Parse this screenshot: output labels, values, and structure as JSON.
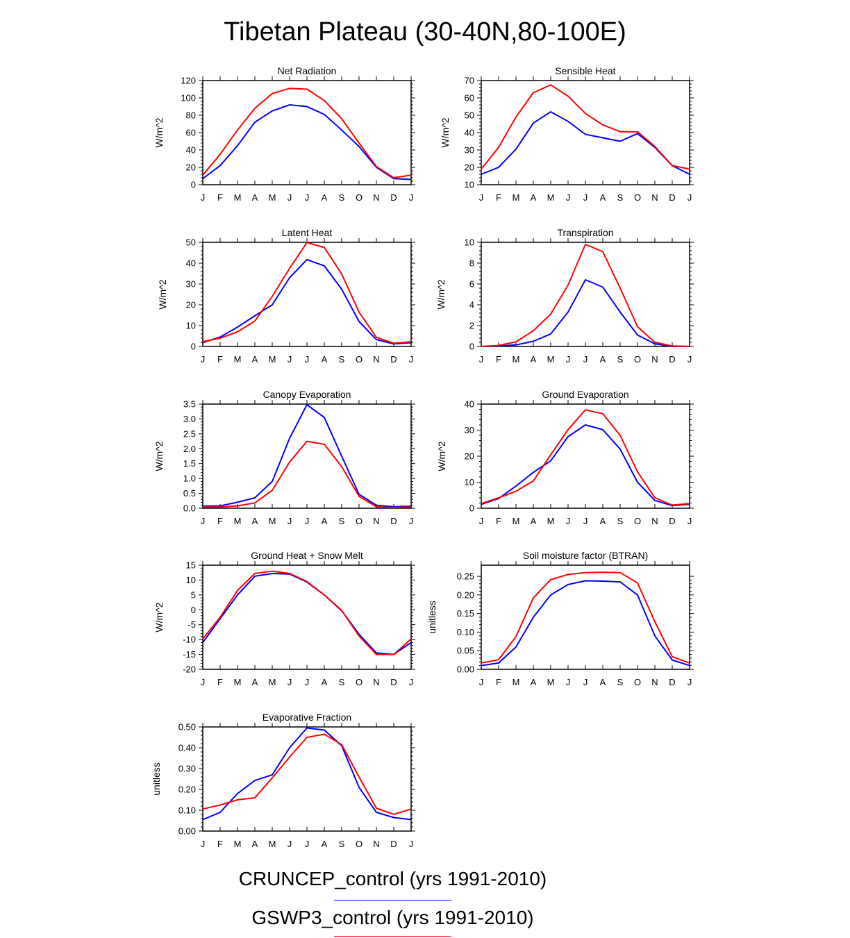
{
  "title": "Tibetan Plateau (30-40N,80-100E)",
  "months": [
    "J",
    "F",
    "M",
    "A",
    "M",
    "J",
    "J",
    "A",
    "S",
    "O",
    "N",
    "D",
    "J"
  ],
  "legend": [
    {
      "label": "CRUNCEP_control (yrs 1991-2010)",
      "color": "#0000ff"
    },
    {
      "label": "GSWP3_control (yrs 1991-2010)",
      "color": "#ff0000"
    }
  ],
  "chart_data": [
    {
      "type": "line",
      "title": "Net Radiation",
      "ylabel": "W/m^2",
      "ylim": [
        0,
        120
      ],
      "yticks": [
        0,
        20,
        40,
        60,
        80,
        100,
        120
      ],
      "yticklabels": [
        "0",
        "20",
        "40",
        "60",
        "80",
        "100",
        "120"
      ],
      "series": [
        {
          "name": "CRUNCEP_control (yrs 1991-2010)",
          "color": "#0000ff",
          "values": [
            7,
            22,
            45,
            72,
            85,
            92,
            90,
            81,
            63,
            44,
            20,
            7,
            6
          ]
        },
        {
          "name": "GSWP3_control (yrs 1991-2010)",
          "color": "#ff0000",
          "values": [
            11,
            35,
            63,
            88,
            105,
            111,
            110,
            97,
            76,
            48,
            21,
            8,
            11
          ]
        }
      ]
    },
    {
      "type": "line",
      "title": "Sensible Heat",
      "ylabel": "W/m^2",
      "ylim": [
        10,
        70
      ],
      "yticks": [
        10,
        20,
        30,
        40,
        50,
        60,
        70
      ],
      "yticklabels": [
        "10",
        "20",
        "30",
        "40",
        "50",
        "60",
        "70"
      ],
      "series": [
        {
          "name": "CRUNCEP_control (yrs 1991-2010)",
          "color": "#0000ff",
          "values": [
            16,
            20,
            30.5,
            45.5,
            52,
            46.5,
            39,
            37,
            35,
            39.5,
            31.5,
            21,
            16
          ]
        },
        {
          "name": "GSWP3_control (yrs 1991-2010)",
          "color": "#ff0000",
          "values": [
            19,
            31.5,
            49,
            63,
            67.5,
            61,
            51,
            44.5,
            40.5,
            40.5,
            32,
            21,
            19
          ]
        }
      ]
    },
    {
      "type": "line",
      "title": "Latent Heat",
      "ylabel": "W/m^2",
      "ylim": [
        0,
        50
      ],
      "yticks": [
        0,
        10,
        20,
        30,
        40,
        50
      ],
      "yticklabels": [
        "0",
        "10",
        "20",
        "30",
        "40",
        "50"
      ],
      "series": [
        {
          "name": "CRUNCEP_control (yrs 1991-2010)",
          "color": "#0000ff",
          "values": [
            1.8,
            4.5,
            9.3,
            14.7,
            20,
            33,
            41.7,
            38.7,
            27.5,
            12,
            3.3,
            1.2,
            1.8
          ]
        },
        {
          "name": "GSWP3_control (yrs 1991-2010)",
          "color": "#ff0000",
          "values": [
            2.3,
            4,
            7,
            12.2,
            24,
            37.5,
            49.9,
            47.5,
            34.8,
            16.5,
            4.4,
            1.5,
            2.3
          ]
        }
      ]
    },
    {
      "type": "line",
      "title": "Transpiration",
      "ylabel": "W/m^2",
      "ylim": [
        0,
        10
      ],
      "yticks": [
        0,
        2,
        4,
        6,
        8,
        10
      ],
      "yticklabels": [
        "0",
        "2",
        "4",
        "6",
        "8",
        "10"
      ],
      "series": [
        {
          "name": "CRUNCEP_control (yrs 1991-2010)",
          "color": "#0000ff",
          "values": [
            0,
            0.05,
            0.15,
            0.5,
            1.2,
            3.3,
            6.4,
            5.7,
            3.3,
            1.1,
            0.25,
            0.02,
            0
          ]
        },
        {
          "name": "GSWP3_control (yrs 1991-2010)",
          "color": "#ff0000",
          "values": [
            0,
            0.1,
            0.45,
            1.5,
            3.1,
            5.9,
            9.8,
            9.1,
            5.6,
            1.9,
            0.4,
            0.05,
            0
          ]
        }
      ]
    },
    {
      "type": "line",
      "title": "Canopy Evaporation",
      "ylabel": "W/m^2",
      "ylim": [
        0,
        3.5
      ],
      "yticks": [
        0,
        0.5,
        1,
        1.5,
        2,
        2.5,
        3,
        3.5
      ],
      "yticklabels": [
        "0.0",
        "0.5",
        "1.0",
        "1.5",
        "2.0",
        "2.5",
        "3.0",
        "3.5"
      ],
      "series": [
        {
          "name": "CRUNCEP_control (yrs 1991-2010)",
          "color": "#0000ff",
          "values": [
            0.07,
            0.08,
            0.2,
            0.35,
            0.9,
            2.35,
            3.48,
            3.05,
            1.75,
            0.47,
            0.1,
            0.05,
            0.07
          ]
        },
        {
          "name": "GSWP3_control (yrs 1991-2010)",
          "color": "#ff0000",
          "values": [
            0.04,
            0.04,
            0.08,
            0.18,
            0.6,
            1.55,
            2.25,
            2.15,
            1.4,
            0.4,
            0.05,
            0.02,
            0.04
          ]
        }
      ]
    },
    {
      "type": "line",
      "title": "Ground Evaporation",
      "ylabel": "W/m^2",
      "ylim": [
        0,
        40
      ],
      "yticks": [
        0,
        10,
        20,
        30,
        40
      ],
      "yticklabels": [
        "0",
        "10",
        "20",
        "30",
        "40"
      ],
      "series": [
        {
          "name": "CRUNCEP_control (yrs 1991-2010)",
          "color": "#0000ff",
          "values": [
            1.5,
            3.7,
            8.5,
            13.8,
            18.2,
            27.5,
            32,
            30.2,
            22.7,
            10,
            3,
            1,
            1.5
          ]
        },
        {
          "name": "GSWP3_control (yrs 1991-2010)",
          "color": "#ff0000",
          "values": [
            1.8,
            4,
            6.5,
            10.5,
            20.5,
            30.2,
            37.8,
            36.3,
            28,
            14,
            4,
            1.2,
            1.8
          ]
        }
      ]
    },
    {
      "type": "line",
      "title": "Ground Heat + Snow Melt",
      "ylabel": "W/m^2",
      "ylim": [
        -20,
        15
      ],
      "yticks": [
        -20,
        -15,
        -10,
        -5,
        0,
        5,
        10,
        15
      ],
      "yticklabels": [
        "-20",
        "-15",
        "-10",
        "-5",
        "0",
        "5",
        "10",
        "15"
      ],
      "series": [
        {
          "name": "CRUNCEP_control (yrs 1991-2010)",
          "color": "#0000ff",
          "values": [
            -11,
            -3,
            5,
            11.3,
            12.2,
            12,
            9.3,
            5,
            -0.3,
            -8.2,
            -14.5,
            -15,
            -11
          ]
        },
        {
          "name": "GSWP3_control (yrs 1991-2010)",
          "color": "#ff0000",
          "values": [
            -9.8,
            -2.5,
            6.5,
            12.2,
            13,
            12.2,
            9.5,
            5,
            -0.2,
            -8.8,
            -15,
            -15,
            -9.8
          ]
        }
      ]
    },
    {
      "type": "line",
      "title": "Soil moisture factor (BTRAN)",
      "ylabel": "unitless",
      "ylim": [
        0,
        0.28
      ],
      "yticks": [
        0,
        0.05,
        0.1,
        0.15,
        0.2,
        0.25
      ],
      "yticklabels": [
        "0.00",
        "0.05",
        "0.10",
        "0.15",
        "0.20",
        "0.25"
      ],
      "series": [
        {
          "name": "CRUNCEP_control (yrs 1991-2010)",
          "color": "#0000ff",
          "values": [
            0.01,
            0.017,
            0.06,
            0.14,
            0.2,
            0.228,
            0.238,
            0.237,
            0.235,
            0.2,
            0.09,
            0.025,
            0.01
          ]
        },
        {
          "name": "GSWP3_control (yrs 1991-2010)",
          "color": "#ff0000",
          "values": [
            0.017,
            0.026,
            0.088,
            0.192,
            0.241,
            0.255,
            0.26,
            0.261,
            0.26,
            0.232,
            0.128,
            0.034,
            0.017
          ]
        }
      ]
    },
    {
      "type": "line",
      "title": "Evaporative Fraction",
      "ylabel": "unitless",
      "ylim": [
        0,
        0.5
      ],
      "yticks": [
        0,
        0.1,
        0.2,
        0.3,
        0.4,
        0.5
      ],
      "yticklabels": [
        "0.00",
        "0.10",
        "0.20",
        "0.30",
        "0.40",
        "0.50"
      ],
      "series": [
        {
          "name": "CRUNCEP_control (yrs 1991-2010)",
          "color": "#0000ff",
          "values": [
            0.055,
            0.09,
            0.18,
            0.243,
            0.27,
            0.4,
            0.495,
            0.485,
            0.41,
            0.21,
            0.09,
            0.065,
            0.055
          ]
        },
        {
          "name": "GSWP3_control (yrs 1991-2010)",
          "color": "#ff0000",
          "values": [
            0.106,
            0.125,
            0.15,
            0.16,
            0.255,
            0.355,
            0.45,
            0.465,
            0.415,
            0.26,
            0.11,
            0.08,
            0.106
          ]
        }
      ]
    }
  ]
}
